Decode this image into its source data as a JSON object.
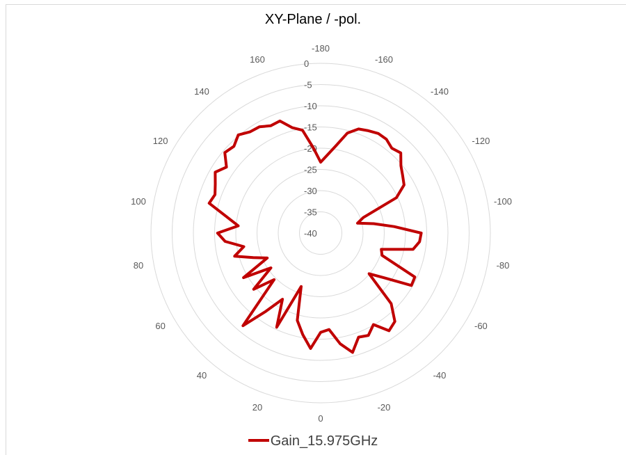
{
  "chart_data": {
    "type": "radar",
    "title": "XY-Plane / -pol.",
    "angular_tick_labels": [
      "0",
      "20",
      "40",
      "60",
      "80",
      "100",
      "120",
      "140",
      "160",
      "-180",
      "-160",
      "-140",
      "-120",
      "-100",
      "-80",
      "-60",
      "-40",
      "-20"
    ],
    "angular_ticks_deg": [
      0,
      20,
      40,
      60,
      80,
      100,
      120,
      140,
      160,
      -180,
      -160,
      -140,
      -120,
      -100,
      -80,
      -60,
      -40,
      -20
    ],
    "radial_tick_labels": [
      "0",
      "-5",
      "-10",
      "-15",
      "-20",
      "-25",
      "-30",
      "-35",
      "-40"
    ],
    "r_range": [
      -40,
      0
    ],
    "grid": true,
    "legend_position": "bottom",
    "series": [
      {
        "name": "Gain_15.975GHz",
        "color": "#c00000",
        "angles_deg": [
          -180,
          -175,
          -170,
          -165,
          -160,
          -155,
          -150,
          -145,
          -140,
          -135,
          -130,
          -125,
          -120,
          -115,
          -110,
          -105,
          -100,
          -95,
          -90,
          -85,
          -80,
          -75,
          -70,
          -65,
          -60,
          -55,
          -50,
          -45,
          -40,
          -35,
          -30,
          -25,
          -20,
          -15,
          -10,
          -5,
          0,
          5,
          10,
          15,
          20,
          25,
          30,
          35,
          40,
          45,
          50,
          55,
          60,
          65,
          70,
          75,
          80,
          85,
          90,
          95,
          100,
          105,
          110,
          115,
          120,
          125,
          130,
          135,
          140,
          145,
          150,
          155,
          160,
          165,
          170,
          175
        ],
        "gain_db": [
          -23.3,
          -21.5,
          -19.1,
          -15.6,
          -13.9,
          -13.4,
          -12.9,
          -13.0,
          -13.9,
          -13.3,
          -15.3,
          -16.4,
          -17.3,
          -20.3,
          -29.3,
          -31.0,
          -27.3,
          -22.6,
          -16.3,
          -16.6,
          -17.9,
          -25.2,
          -24.6,
          -15.5,
          -15.3,
          -21.6,
          -25.1,
          -16.5,
          -12.8,
          -11.9,
          -15.1,
          -13.4,
          -13.9,
          -10.9,
          -13.5,
          -17.2,
          -16.6,
          -12.7,
          -15.7,
          -18.7,
          -26.6,
          -15.5,
          -22.0,
          -17.5,
          -11.5,
          -24.5,
          -19.4,
          -25.7,
          -19.0,
          -26.1,
          -23.1,
          -19.0,
          -21.6,
          -17.4,
          -15.7,
          -20.5,
          -17.4,
          -12.8,
          -13.5,
          -12.6,
          -11.3,
          -12.9,
          -10.5,
          -11.1,
          -9.8,
          -10.9,
          -11.1,
          -12.1,
          -11.9,
          -14.3,
          -15.4,
          -19.8
        ]
      }
    ]
  }
}
